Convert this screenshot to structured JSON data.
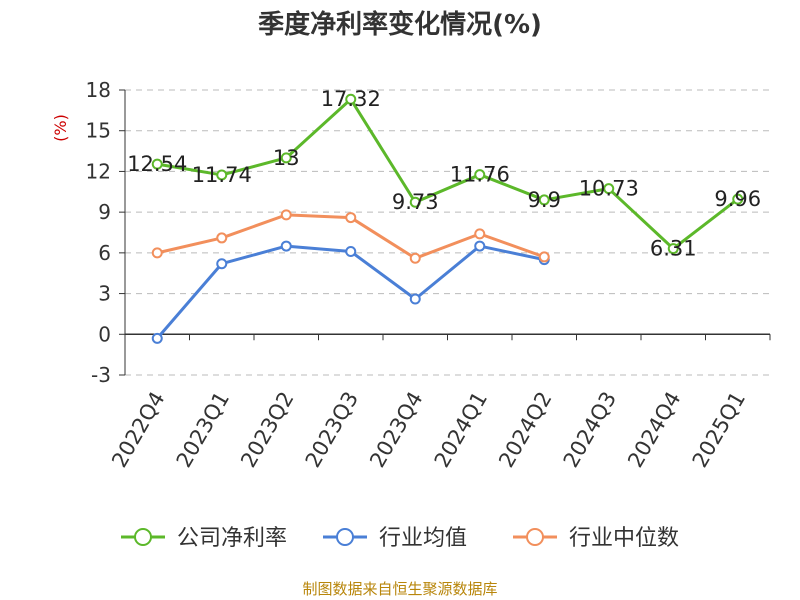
{
  "chart_data": {
    "type": "line",
    "title": "季度净利率变化情况(%)",
    "ylabel": "(%)",
    "xlabel": "",
    "categories": [
      "2022Q4",
      "2023Q1",
      "2023Q2",
      "2023Q3",
      "2023Q4",
      "2024Q1",
      "2024Q2",
      "2024Q3",
      "2024Q4",
      "2025Q1"
    ],
    "y_ticks": [
      "18",
      "15",
      "12",
      "9",
      "6",
      "3",
      "0",
      "-3"
    ],
    "ylim": [
      -3,
      18
    ],
    "grid": true,
    "legend_position": "bottom",
    "series": [
      {
        "name": "公司净利率",
        "color": "#5cb82a",
        "values": [
          12.54,
          11.74,
          13,
          17.32,
          9.73,
          11.76,
          9.9,
          10.73,
          6.31,
          9.96
        ],
        "labels": [
          "12.54",
          "11.74",
          "13",
          "17.32",
          "9.73",
          "11.76",
          "9.9",
          "10.73",
          "6.31",
          "9.96"
        ]
      },
      {
        "name": "行业均值",
        "color": "#4a7fd6",
        "values": [
          -0.3,
          5.2,
          6.5,
          6.1,
          2.6,
          6.5,
          5.5,
          null,
          null,
          null
        ]
      },
      {
        "name": "行业中位数",
        "color": "#f28f5c",
        "values": [
          6.0,
          7.1,
          8.8,
          8.6,
          5.6,
          7.4,
          5.7,
          null,
          null,
          null
        ]
      }
    ]
  },
  "source": "制图数据来自恒生聚源数据库"
}
